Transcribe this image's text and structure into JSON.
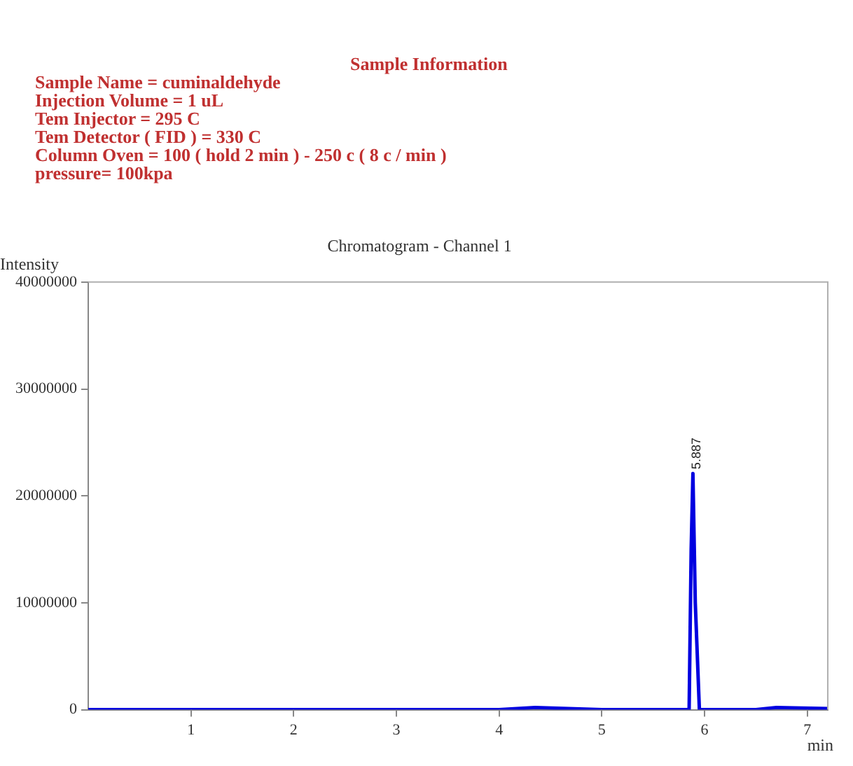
{
  "chart_data": {
    "type": "line",
    "title": "Sample Information",
    "subtitle": "Chromatogram - Channel 1",
    "xlabel": "min",
    "ylabel": "Intensity",
    "annotations": [
      "Sample Name = cuminaldehyde",
      "Injection Volume = 1 uL",
      "Tem Injector = 295 C",
      "Tem Detector ( FID ) = 330 C",
      "Column Oven = 100 ( hold 2 min ) - 250 c ( 8 c / min )",
      "pressure= 100kpa",
      {
        "text": "5.887",
        "x": 5.887,
        "y": 22100000
      }
    ],
    "series": [
      {
        "color": "#0000e0",
        "x": [
          0,
          1,
          2,
          2.5,
          3,
          4,
          4.35,
          5,
          5.85,
          5.87,
          5.887,
          5.91,
          5.95,
          6.5,
          6.7,
          7.2
        ],
        "values": [
          0,
          0,
          0,
          0,
          0,
          0,
          200000,
          0,
          0,
          15000000,
          22100000,
          10000000,
          0,
          0,
          200000,
          100000
        ]
      }
    ],
    "xlim": [
      0,
      7.2
    ],
    "xticks": [
      1,
      2,
      3,
      4,
      5,
      6,
      7
    ],
    "ylim": [
      0,
      40000000
    ],
    "yticks": [
      0,
      10000000,
      20000000,
      30000000,
      40000000
    ],
    "grid": false,
    "legend": false,
    "marker": "none",
    "line_style": "solid"
  }
}
